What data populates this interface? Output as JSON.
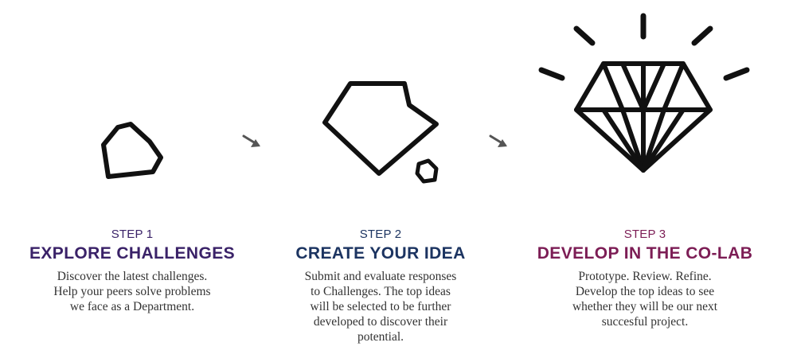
{
  "colors": {
    "step1": "#3a2268",
    "step2": "#1c3461",
    "step3": "#7c1d55",
    "icon": "#111111",
    "arrow": "#555555"
  },
  "steps": [
    {
      "label": "STEP 1",
      "title": "EXPLORE CHALLENGES",
      "description": [
        "Discover the latest challenges.",
        "Help your peers solve problems",
        "we face as a Department."
      ],
      "icon": "pebble-icon"
    },
    {
      "label": "STEP 2",
      "title": "CREATE YOUR IDEA",
      "description": [
        "Submit and evaluate responses",
        "to Challenges. The top ideas",
        "will be selected to be further",
        "developed to discover their",
        "potential."
      ],
      "icon": "rough-stone-icon"
    },
    {
      "label": "STEP 3",
      "title": "DEVELOP IN THE CO-LAB",
      "description": [
        "Prototype. Review. Refine.",
        "Develop the top ideas to see",
        "whether they will be our next",
        "succesful project."
      ],
      "icon": "diamond-icon"
    }
  ]
}
